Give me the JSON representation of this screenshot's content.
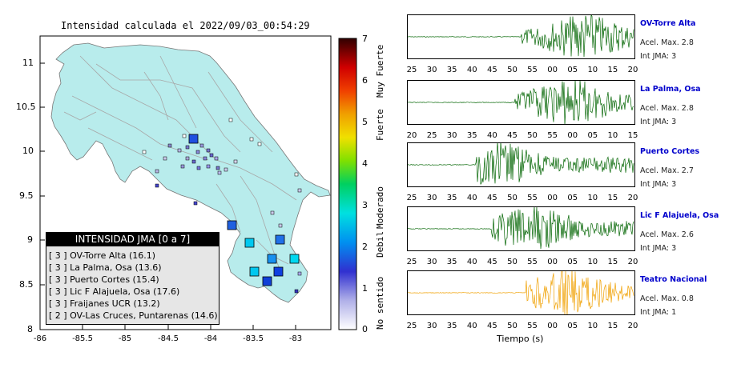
{
  "map": {
    "title": "Intensidad calculada el 2022/09/03_00:54:29",
    "y_ticks": [
      "11",
      "10.5",
      "10",
      "9.5",
      "9",
      "8.5",
      "8"
    ],
    "x_ticks": [
      "-86",
      "-85.5",
      "-85",
      "-84.5",
      "-84",
      "-83.5",
      "-83"
    ],
    "colors": {
      "land": "#b8ecec",
      "water": "#ffffff",
      "roads": "#aaaaaa"
    }
  },
  "legend": {
    "title": "INTENSIDAD JMA [0 a 7]",
    "rows": [
      "[ 3 ]  OV-Torre Alta (16.1)",
      "[ 3 ]  La Palma, Osa (13.6)",
      "[ 3 ]  Puerto Cortes (15.4)",
      "[ 3 ]  Lic F Alajuela, Osa (17.6)",
      "[ 3 ]  Fraijanes UCR (13.2)",
      "[ 2 ]  OV-Las Cruces, Puntarenas (14.6)"
    ]
  },
  "colorbar": {
    "ticks": [
      "7",
      "6",
      "5",
      "4",
      "3",
      "2",
      "1",
      "0"
    ],
    "words": [
      "Muy Fuerte",
      "Fuerte",
      "Moderado",
      "Debil",
      "No sentido"
    ]
  },
  "stations": [
    {
      "name": "OV-Torre Alta",
      "accel": "Acel. Max. 2.8",
      "jma": "Int JMA: 3",
      "color": "#006400",
      "ticks": [
        "25",
        "30",
        "35",
        "40",
        "45",
        "50",
        "55",
        "00",
        "05",
        "10",
        "15",
        "20"
      ]
    },
    {
      "name": "La Palma, Osa",
      "accel": "Acel. Max. 2.8",
      "jma": "Int JMA: 3",
      "color": "#006400",
      "ticks": [
        "20",
        "25",
        "30",
        "35",
        "40",
        "45",
        "50",
        "55",
        "00",
        "05",
        "10",
        "15"
      ]
    },
    {
      "name": "Puerto Cortes",
      "accel": "Acel. Max. 2.7",
      "jma": "Int JMA: 3",
      "color": "#006400",
      "ticks": [
        "25",
        "30",
        "35",
        "40",
        "45",
        "50",
        "55",
        "00",
        "05",
        "10",
        "15",
        "20"
      ]
    },
    {
      "name": "Lic F Alajuela, Osa",
      "accel": "Acel. Max. 2.6",
      "jma": "Int JMA: 3",
      "color": "#006400",
      "ticks": [
        "25",
        "30",
        "35",
        "40",
        "45",
        "50",
        "55",
        "00",
        "05",
        "10",
        "15",
        "20"
      ]
    },
    {
      "name": "Teatro Nacional",
      "accel": "Acel. Max. 0.8",
      "jma": "Int JMA: 1",
      "color": "#f0a000",
      "ticks": [
        "25",
        "30",
        "35",
        "40",
        "45",
        "50",
        "55",
        "00",
        "05",
        "10",
        "15",
        "20"
      ]
    }
  ],
  "traces_xlabel": "Tiempo (s)"
}
